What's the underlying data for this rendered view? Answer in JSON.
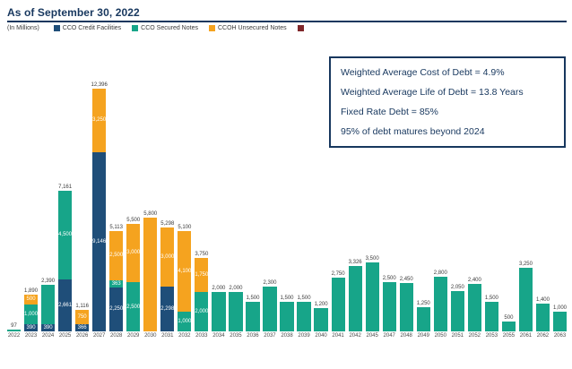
{
  "header": {
    "title": "As of September 30, 2022",
    "subtitle": "(In Millions)"
  },
  "legend": [
    {
      "label": "CCO Credit Facilities",
      "color": "#1f4e79"
    },
    {
      "label": "CCO Secured Notes",
      "color": "#17a589"
    },
    {
      "label": "CCOH Unsecured Notes",
      "color": "#f5a31f"
    },
    {
      "label": "",
      "color": "#7f2629"
    }
  ],
  "info_box": {
    "lines": [
      "Weighted Average Cost of Debt = 4.9%",
      "Weighted Average Life of Debt = 13.8 Years",
      "Fixed Rate Debt = 85%",
      "95% of debt matures beyond 2024"
    ]
  },
  "chart_data": {
    "type": "bar",
    "stacked": true,
    "unit": "In Millions",
    "ylim": [
      0,
      12600
    ],
    "grid": false,
    "legend_position": "top",
    "series_labels": {
      "credit": "CCO Credit Facilities",
      "secured": "CCO Secured Notes",
      "unsecured": "CCOH Unsecured Notes"
    },
    "series_colors": {
      "credit": "#1f4e79",
      "secured": "#17a589",
      "unsecured": "#f5a31f"
    },
    "bars": [
      {
        "year": "2022",
        "total": "97",
        "segments": [
          {
            "series": "secured",
            "value": 97
          }
        ]
      },
      {
        "year": "2023",
        "total": "1,890",
        "segments": [
          {
            "series": "credit",
            "value": 390,
            "label": "390"
          },
          {
            "series": "secured",
            "value": 1000,
            "label": "1,000"
          },
          {
            "series": "unsecured",
            "value": 500,
            "label": "500"
          }
        ]
      },
      {
        "year": "2024",
        "total": "2,390",
        "segments": [
          {
            "series": "credit",
            "value": 390,
            "label": "390"
          },
          {
            "series": "secured",
            "value": 2000
          }
        ]
      },
      {
        "year": "2025",
        "total": "7,161",
        "segments": [
          {
            "series": "credit",
            "value": 2661,
            "label": "2,661"
          },
          {
            "series": "secured",
            "value": 4500,
            "label": "4,500"
          }
        ]
      },
      {
        "year": "2026",
        "total": "1,116",
        "segments": [
          {
            "series": "credit",
            "value": 366,
            "label": "366"
          },
          {
            "series": "unsecured",
            "value": 750,
            "label": "750"
          }
        ]
      },
      {
        "year": "2027",
        "total": "12,396",
        "segments": [
          {
            "series": "credit",
            "value": 9146,
            "label": "9,146"
          },
          {
            "series": "unsecured",
            "value": 3250,
            "label": "3,250"
          }
        ]
      },
      {
        "year": "2028",
        "total": "5,113",
        "segments": [
          {
            "series": "credit",
            "value": 2250,
            "label": "2,250"
          },
          {
            "series": "secured",
            "value": 363,
            "label": "363"
          },
          {
            "series": "unsecured",
            "value": 2500,
            "label": "2,500"
          }
        ]
      },
      {
        "year": "2029",
        "total": "5,500",
        "segments": [
          {
            "series": "secured",
            "value": 2500,
            "label": "2,500"
          },
          {
            "series": "unsecured",
            "value": 3000,
            "label": "3,000"
          }
        ]
      },
      {
        "year": "2030",
        "total": "5,800",
        "segments": [
          {
            "series": "unsecured",
            "value": 5800
          }
        ]
      },
      {
        "year": "2031",
        "total": "5,298",
        "segments": [
          {
            "series": "credit",
            "value": 2298,
            "label": "2,298"
          },
          {
            "series": "unsecured",
            "value": 3000,
            "label": "3,000"
          }
        ]
      },
      {
        "year": "2032",
        "total": "5,100",
        "segments": [
          {
            "series": "secured",
            "value": 1000,
            "label": "1,000"
          },
          {
            "series": "unsecured",
            "value": 4100,
            "label": "4,100"
          }
        ]
      },
      {
        "year": "2033",
        "total": "3,750",
        "segments": [
          {
            "series": "secured",
            "value": 2000,
            "label": "2,000"
          },
          {
            "series": "unsecured",
            "value": 1750,
            "label": "1,750"
          }
        ]
      },
      {
        "year": "2034",
        "total": "2,000",
        "segments": [
          {
            "series": "secured",
            "value": 2000
          }
        ]
      },
      {
        "year": "2035",
        "total": "2,000",
        "segments": [
          {
            "series": "secured",
            "value": 2000
          }
        ]
      },
      {
        "year": "2036",
        "total": "1,500",
        "segments": [
          {
            "series": "secured",
            "value": 1500
          }
        ]
      },
      {
        "year": "2037",
        "total": "2,300",
        "segments": [
          {
            "series": "secured",
            "value": 2300
          }
        ]
      },
      {
        "year": "2038",
        "total": "1,500",
        "segments": [
          {
            "series": "secured",
            "value": 1500
          }
        ]
      },
      {
        "year": "2039",
        "total": "1,500",
        "segments": [
          {
            "series": "secured",
            "value": 1500
          }
        ]
      },
      {
        "year": "2040",
        "total": "1,200",
        "segments": [
          {
            "series": "secured",
            "value": 1200
          }
        ]
      },
      {
        "year": "2041",
        "total": "2,750",
        "segments": [
          {
            "series": "secured",
            "value": 2750
          }
        ]
      },
      {
        "year": "2042",
        "total": "3,326",
        "segments": [
          {
            "series": "secured",
            "value": 3326
          }
        ]
      },
      {
        "year": "2045",
        "total": "3,500",
        "segments": [
          {
            "series": "secured",
            "value": 3500
          }
        ]
      },
      {
        "year": "2047",
        "total": "2,500",
        "segments": [
          {
            "series": "secured",
            "value": 2500
          }
        ]
      },
      {
        "year": "2048",
        "total": "2,450",
        "segments": [
          {
            "series": "secured",
            "value": 2450
          }
        ]
      },
      {
        "year": "2049",
        "total": "1,250",
        "segments": [
          {
            "series": "secured",
            "value": 1250
          }
        ]
      },
      {
        "year": "2050",
        "total": "2,800",
        "segments": [
          {
            "series": "secured",
            "value": 2800
          }
        ]
      },
      {
        "year": "2051",
        "total": "2,050",
        "segments": [
          {
            "series": "secured",
            "value": 2050
          }
        ]
      },
      {
        "year": "2052",
        "total": "2,400",
        "segments": [
          {
            "series": "secured",
            "value": 2400
          }
        ]
      },
      {
        "year": "2053",
        "total": "1,500",
        "segments": [
          {
            "series": "secured",
            "value": 1500
          }
        ]
      },
      {
        "year": "2055",
        "total": "500",
        "segments": [
          {
            "series": "secured",
            "value": 500
          }
        ]
      },
      {
        "year": "2061",
        "total": "3,250",
        "segments": [
          {
            "series": "secured",
            "value": 3250
          }
        ]
      },
      {
        "year": "2062",
        "total": "1,400",
        "segments": [
          {
            "series": "secured",
            "value": 1400
          }
        ]
      },
      {
        "year": "2063",
        "total": "1,000",
        "segments": [
          {
            "series": "secured",
            "value": 1000
          }
        ]
      }
    ]
  }
}
